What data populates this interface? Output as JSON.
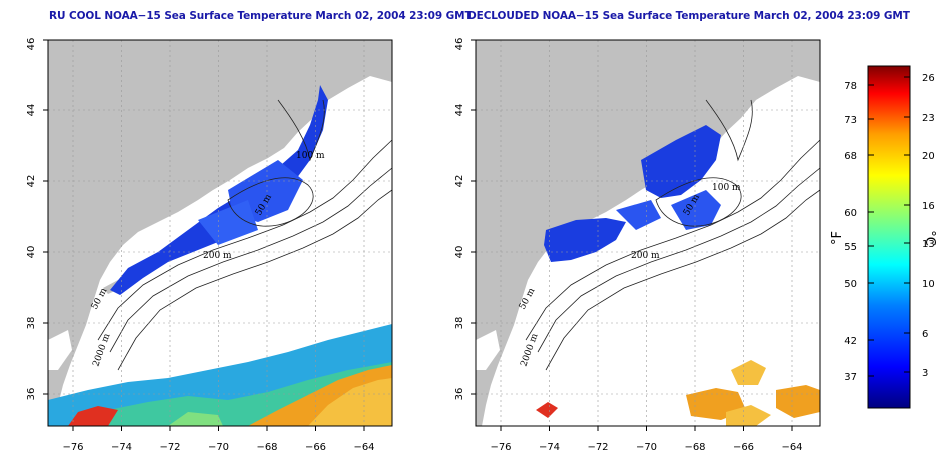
{
  "panels": [
    {
      "id": "ru-cool",
      "title": "RU COOL NOAA−15 Sea Surface Temperature March 02, 2004 23:09 GMT",
      "x_ticks": [
        "−76",
        "−74",
        "−72",
        "−70",
        "−68",
        "−66",
        "−64"
      ],
      "y_ticks": [
        "36",
        "38",
        "40",
        "42",
        "44",
        "46"
      ],
      "contour_labels": [
        "100 m",
        "50 m",
        "200 m",
        "50 m",
        "2000 m"
      ]
    },
    {
      "id": "declouded",
      "title": "DECLOUDED NOAA−15 Sea Surface Temperature March 02, 2004 23:09 GMT",
      "x_ticks": [
        "−76",
        "−74",
        "−72",
        "−70",
        "−68",
        "−66",
        "−64"
      ],
      "y_ticks": [
        "36",
        "38",
        "40",
        "42",
        "44",
        "46"
      ],
      "contour_labels": [
        "100 m",
        "50 m",
        "200 m",
        "50 m",
        "2000 m"
      ]
    }
  ],
  "colorbar": {
    "fahrenheit_ticks": [
      "78",
      "73",
      "68",
      "60",
      "55",
      "50",
      "42",
      "37"
    ],
    "celsius_ticks": [
      "26",
      "23",
      "20",
      "16",
      "13",
      "10",
      "6",
      "3"
    ],
    "fahrenheit_unit": "°F",
    "celsius_unit": "°C",
    "colors": [
      "#00007f",
      "#0000ff",
      "#007fff",
      "#00ffff",
      "#7fff7f",
      "#ffff00",
      "#ff7f00",
      "#ff0000",
      "#7f0000"
    ]
  },
  "colors": {
    "land": "#c0c0c0",
    "ocean": "#ffffff",
    "cold_water": "#1a3de0",
    "title": "#1a1aa8"
  }
}
